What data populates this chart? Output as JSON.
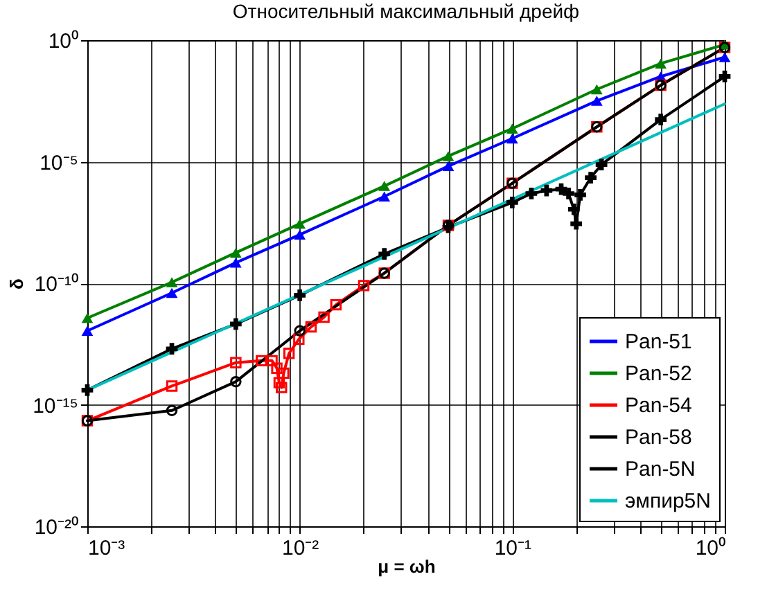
{
  "chart_data": {
    "type": "line",
    "title": "Относительный максимальный дрейф",
    "xlabel": "μ = ωh",
    "ylabel": "δ",
    "log": "xy",
    "grid": true,
    "legend": "bottom right",
    "xlim": [
      0.001,
      1
    ],
    "ylim": [
      1e-20,
      1
    ],
    "xticks": [
      {
        "value": 0.001,
        "label": "10⁻³"
      },
      {
        "value": 0.002,
        "label": null
      },
      {
        "value": 0.003,
        "label": null
      },
      {
        "value": 0.004,
        "label": null
      },
      {
        "value": 0.005,
        "label": null
      },
      {
        "value": 0.006,
        "label": null
      },
      {
        "value": 0.007,
        "label": null
      },
      {
        "value": 0.008,
        "label": null
      },
      {
        "value": 0.009,
        "label": null
      },
      {
        "value": 0.01,
        "label": "10⁻²"
      },
      {
        "value": 0.02,
        "label": null
      },
      {
        "value": 0.03,
        "label": null
      },
      {
        "value": 0.04,
        "label": null
      },
      {
        "value": 0.05,
        "label": null
      },
      {
        "value": 0.06,
        "label": null
      },
      {
        "value": 0.07,
        "label": null
      },
      {
        "value": 0.08,
        "label": null
      },
      {
        "value": 0.09,
        "label": null
      },
      {
        "value": 0.1,
        "label": "10⁻¹"
      },
      {
        "value": 0.2,
        "label": null
      },
      {
        "value": 0.3,
        "label": null
      },
      {
        "value": 0.4,
        "label": null
      },
      {
        "value": 0.5,
        "label": null
      },
      {
        "value": 0.6,
        "label": null
      },
      {
        "value": 0.7,
        "label": null
      },
      {
        "value": 0.8,
        "label": null
      },
      {
        "value": 0.9,
        "label": null
      },
      {
        "value": 1,
        "label": "10⁰"
      }
    ],
    "yticks": [
      {
        "value": 1e-20,
        "label": "10⁻²⁰"
      },
      {
        "value": 1e-15,
        "label": "10⁻¹⁵"
      },
      {
        "value": 1e-10,
        "label": "10⁻¹⁰"
      },
      {
        "value": 1e-05,
        "label": "10⁻⁵"
      },
      {
        "value": 1,
        "label": "10⁰"
      }
    ],
    "series": [
      {
        "name": "Pan-51",
        "color": "#0000ff",
        "marker": "triangle",
        "x": [
          0.001,
          0.0025,
          0.005,
          0.01,
          0.025,
          0.05,
          0.1,
          0.25,
          0.5,
          1
        ],
        "values": [
          1.1e-12,
          4e-11,
          7e-10,
          1e-08,
          3.7e-07,
          6.6e-06,
          9e-05,
          0.0032,
          0.032,
          0.2
        ]
      },
      {
        "name": "Pan-52",
        "color": "#008000",
        "marker": "triangle",
        "x": [
          0.001,
          0.0025,
          0.005,
          0.01,
          0.025,
          0.05,
          0.1,
          0.25,
          0.5,
          1
        ],
        "values": [
          3.7e-12,
          1.1e-10,
          1.8e-09,
          2.8e-08,
          1e-06,
          1.7e-05,
          0.00023,
          0.0095,
          0.11,
          0.66
        ]
      },
      {
        "name": "Pan-54",
        "color": "#ff0000",
        "marker": "square",
        "x": [
          0.001,
          0.0025,
          0.005,
          0.0066,
          0.0074,
          0.0078,
          0.008,
          0.0082,
          0.0084,
          0.0089,
          0.0099,
          0.0113,
          0.013,
          0.0148,
          0.02,
          0.025,
          0.05,
          0.1,
          0.25,
          0.5,
          1
        ],
        "values": [
          2.2e-16,
          5.9e-15,
          5.4e-14,
          6.5e-14,
          6.5e-14,
          3.2e-14,
          8.1e-15,
          5.1e-15,
          2e-14,
          1.3e-13,
          5e-13,
          1.6e-12,
          4e-12,
          1.3e-11,
          8e-11,
          2.6e-10,
          2.4e-08,
          1.3e-06,
          0.00027,
          0.014,
          0.5
        ]
      },
      {
        "name": "Pan-58",
        "color": "#000000",
        "marker": "circle",
        "x": [
          0.001,
          0.0025,
          0.005,
          0.01,
          0.025,
          0.05,
          0.1,
          0.25,
          0.5,
          1
        ],
        "values": [
          2.2e-16,
          5.8e-16,
          8.9e-15,
          1.1e-12,
          2.6e-10,
          2.4e-08,
          1.3e-06,
          0.00027,
          0.014,
          0.5
        ]
      },
      {
        "name": "Pan-5N",
        "color": "#000000",
        "marker": "cross",
        "x": [
          0.001,
          0.0025,
          0.005,
          0.01,
          0.025,
          0.05,
          0.1,
          0.123,
          0.145,
          0.17,
          0.184,
          0.195,
          0.2,
          0.209,
          0.234,
          0.263,
          0.5,
          1
        ],
        "values": [
          4e-15,
          2e-13,
          2.1e-12,
          3.2e-11,
          1.6e-09,
          2e-08,
          2.1e-07,
          4.9e-07,
          6.5e-07,
          7.4e-07,
          4.9e-07,
          1.1e-07,
          2.8e-08,
          4.3e-07,
          2.2e-06,
          7.6e-06,
          0.00054,
          0.032
        ]
      },
      {
        "name": "эмпир5N",
        "color": "#00bfbf",
        "marker": "none",
        "x": [
          0.001,
          1
        ],
        "values": [
          4e-15,
          0.0024
        ]
      }
    ]
  }
}
